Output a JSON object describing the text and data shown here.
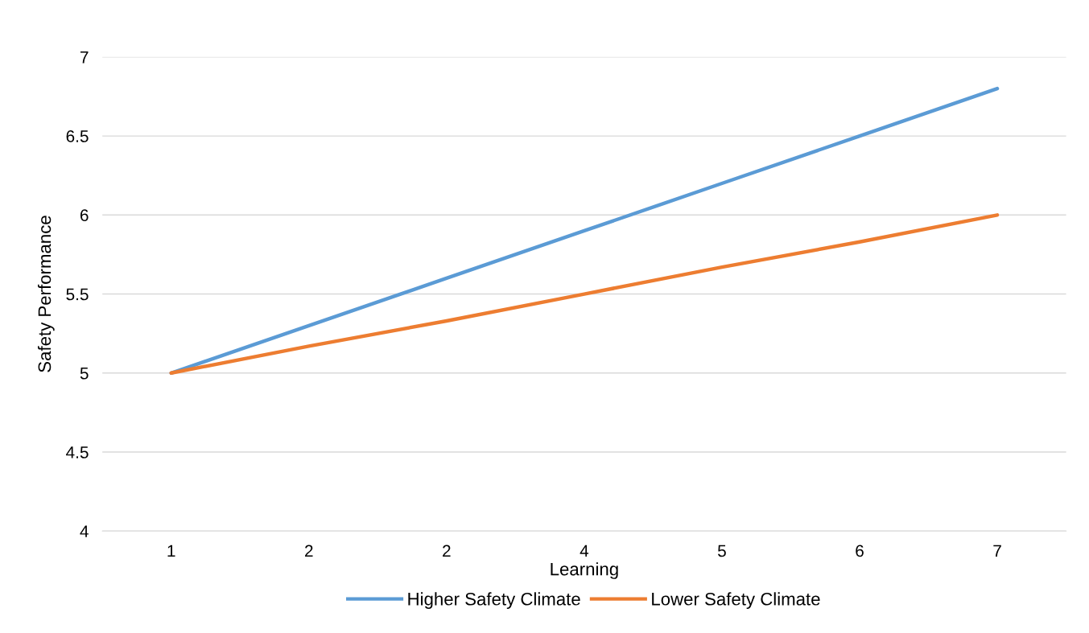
{
  "chart_data": {
    "type": "line",
    "xlabel": "Learning",
    "ylabel": "Safety Performance",
    "categories": [
      "1",
      "2",
      "2",
      "4",
      "5",
      "6",
      "7"
    ],
    "series": [
      {
        "name": "Higher Safety Climate",
        "color": "#5b9bd5",
        "values": [
          5,
          5.3,
          5.6,
          5.9,
          6.2,
          6.5,
          6.8
        ]
      },
      {
        "name": "Lower Safety Climate",
        "color": "#ed7d31",
        "values": [
          5,
          5.17,
          5.33,
          5.5,
          5.67,
          5.83,
          6
        ]
      }
    ],
    "ylim": [
      4,
      7
    ],
    "yticks": [
      4,
      4.5,
      5,
      5.5,
      6,
      6.5,
      7
    ],
    "grid": "y",
    "legend": "bottom",
    "marker": "none",
    "line_style": "solid"
  }
}
